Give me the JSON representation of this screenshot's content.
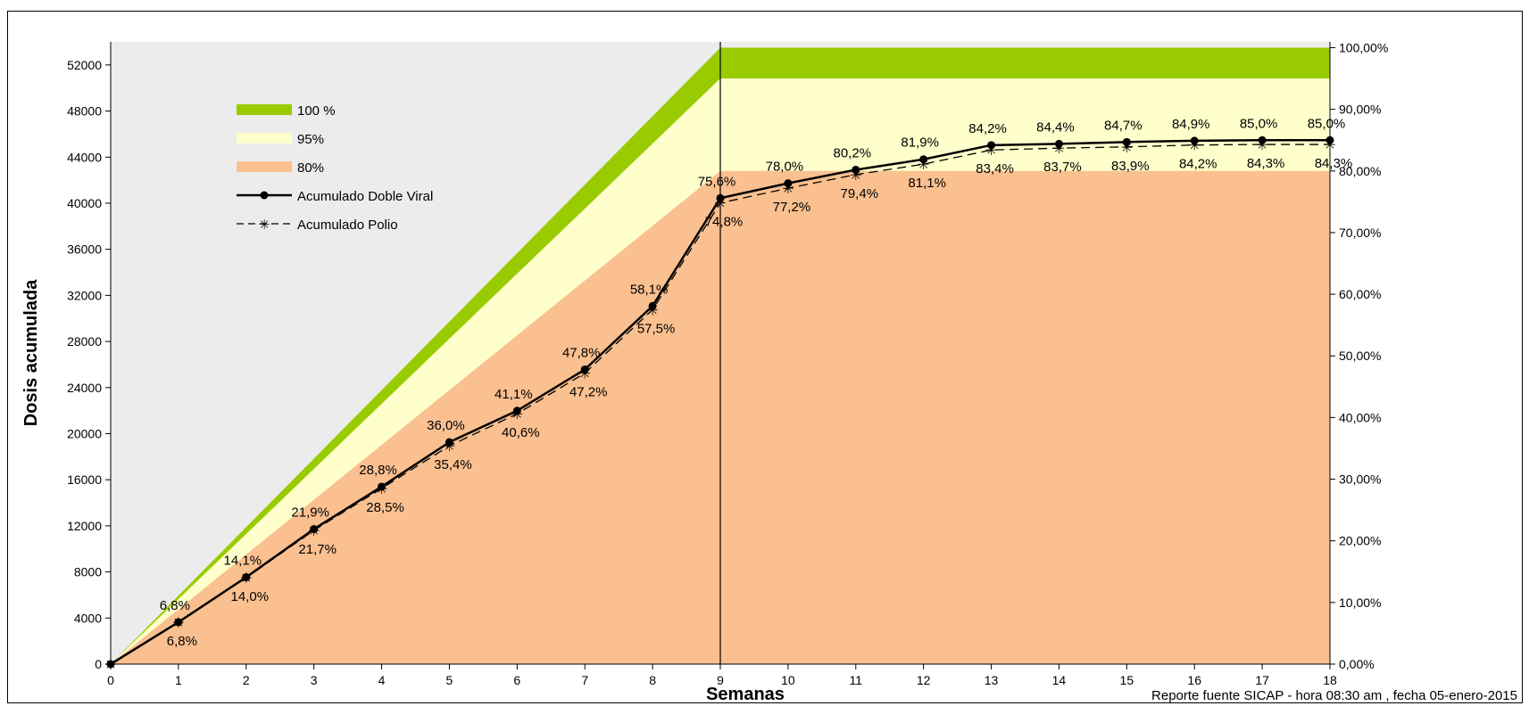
{
  "chart_data": {
    "type": "line",
    "ylabel": "Dosis acumulada",
    "xlabel": "Semanas",
    "note": "Reporte fuente SICAP - hora 08:30 am , fecha 05-enero-2015",
    "x": [
      0,
      1,
      2,
      3,
      4,
      5,
      6,
      7,
      8,
      9,
      10,
      11,
      12,
      13,
      14,
      15,
      16,
      17,
      18
    ],
    "xlim": [
      0,
      18
    ],
    "ylim": [
      0,
      54000
    ],
    "y_ticks": [
      0,
      4000,
      8000,
      12000,
      16000,
      20000,
      24000,
      28000,
      32000,
      36000,
      40000,
      44000,
      48000,
      52000
    ],
    "y2_ticks": [
      "0,00%",
      "10,00%",
      "20,00%",
      "30,00%",
      "40,00%",
      "50,00%",
      "60,00%",
      "70,00%",
      "80,00%",
      "90,00%",
      "100,00%"
    ],
    "goal": 53500,
    "series": [
      {
        "name": "Acumulado Doble Viral",
        "style": "solid",
        "marker": "circle",
        "values": [
          0,
          3640,
          7540,
          11720,
          15400,
          19260,
          21990,
          25570,
          31080,
          40440,
          41730,
          42900,
          43810,
          45040,
          45150,
          45310,
          45420,
          45470,
          45470
        ]
      },
      {
        "name": "Acumulado Polio",
        "style": "dashed",
        "marker": "star",
        "values": [
          0,
          3640,
          7490,
          11610,
          15250,
          18940,
          21720,
          25250,
          30760,
          40020,
          41300,
          42480,
          43390,
          44620,
          44780,
          44890,
          45050,
          45100,
          45100
        ]
      }
    ],
    "labels_above": [
      "6,8%",
      "14,1%",
      "21,9%",
      "28,8%",
      "36,0%",
      "41,1%",
      "47,8%",
      "58,1%",
      "75,6%",
      "78,0%",
      "80,2%",
      "81,9%",
      "84,2%",
      "84,4%",
      "84,7%",
      "84,9%",
      "85,0%",
      "85,0%"
    ],
    "labels_below": [
      "6,8%",
      "14,0%",
      "21,7%",
      "28,5%",
      "35,4%",
      "40,6%",
      "47,2%",
      "57,5%",
      "74,8%",
      "77,2%",
      "79,4%",
      "81,1%",
      "83,4%",
      "83,7%",
      "83,9%",
      "84,2%",
      "84,3%",
      "84,3%"
    ],
    "bands": [
      {
        "name": "100 %",
        "fraction": 1.0,
        "color": "#99cc00"
      },
      {
        "name": "95%",
        "fraction": 0.95,
        "color": "#ffffcc"
      },
      {
        "name": "80%",
        "fraction": 0.8,
        "color": "#fac090"
      }
    ],
    "legend_position": "top-left",
    "colors": {
      "background": "#ececec",
      "line": "#000000"
    }
  }
}
